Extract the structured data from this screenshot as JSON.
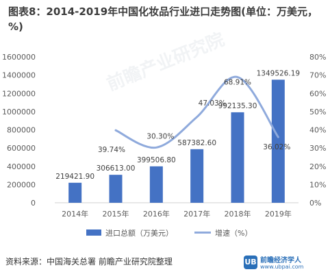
{
  "title": "图表8：2014-2019年中国化妆品行业进口走势图(单位：万美元，%)",
  "source": "资料来源：中国海关总署 前瞻产业研究院整理",
  "colors": {
    "bar": "#4472c4",
    "line": "#8faadc",
    "axis": "#d0d0d0",
    "text": "#595959"
  },
  "chart_data": {
    "type": "bar",
    "categories": [
      "2014年",
      "2015年",
      "2016年",
      "2017年",
      "2018年",
      "2019年"
    ],
    "series": [
      {
        "name": "进口总额（万美元）",
        "type": "bar",
        "axis": "left",
        "values": [
          219421.9,
          306613.0,
          399506.8,
          587382.6,
          992135.3,
          1349526.19
        ],
        "labels": [
          "219421.90",
          "306613.00",
          "399506.80",
          "587382.60",
          "992135.30",
          "1349526.19"
        ]
      },
      {
        "name": "增速（%）",
        "type": "line",
        "axis": "right",
        "values": [
          null,
          39.74,
          30.3,
          47.03,
          68.91,
          36.02
        ],
        "labels": [
          "",
          "39.74%",
          "30.30%",
          "47.03%",
          "68.91%",
          "36.02%"
        ]
      }
    ],
    "y_left": {
      "min": 0,
      "max": 1600000,
      "ticks": [
        "0",
        "200000",
        "400000",
        "600000",
        "800000",
        "1000000",
        "1200000",
        "1400000",
        "1600000"
      ]
    },
    "y_right": {
      "min": 0,
      "max": 80,
      "ticks": [
        "0%",
        "10%",
        "20%",
        "30%",
        "40%",
        "50%",
        "60%",
        "70%",
        "80%"
      ]
    },
    "grid": false,
    "legend": "bottom"
  },
  "watermark": {
    "brand": "前瞻产业研究院",
    "site_name": "前瞻经济学人",
    "site_url": "www.ubpai.com",
    "logo_letters": "UB"
  }
}
